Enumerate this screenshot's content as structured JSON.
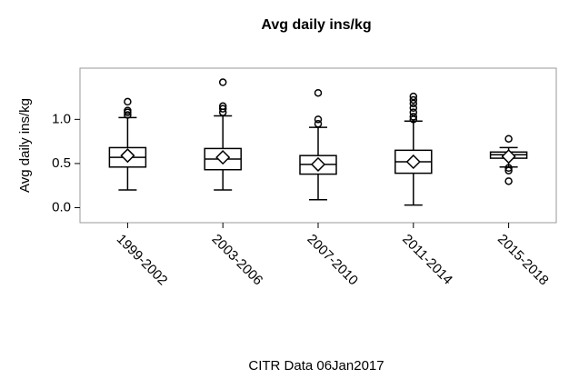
{
  "chart_data": {
    "type": "box",
    "title": "Avg daily ins/kg",
    "ylabel": "Avg daily ins/kg",
    "caption": "CITR  Data 06Jan2017",
    "categories": [
      "1999-2002",
      "2003-2006",
      "2007-2010",
      "2011-2014",
      "2015-2018"
    ],
    "boxes": [
      {
        "low": 0.2,
        "q1": 0.46,
        "median": 0.57,
        "q3": 0.68,
        "high": 1.02,
        "mean": 0.59,
        "outliers": [
          1.05,
          1.08,
          1.1,
          1.2
        ]
      },
      {
        "low": 0.2,
        "q1": 0.43,
        "median": 0.55,
        "q3": 0.67,
        "high": 1.04,
        "mean": 0.57,
        "outliers": [
          1.08,
          1.12,
          1.15,
          1.42
        ]
      },
      {
        "low": 0.09,
        "q1": 0.38,
        "median": 0.49,
        "q3": 0.59,
        "high": 0.91,
        "mean": 0.49,
        "outliers": [
          0.95,
          1.0,
          1.3
        ]
      },
      {
        "low": 0.03,
        "q1": 0.39,
        "median": 0.52,
        "q3": 0.65,
        "high": 0.98,
        "mean": 0.52,
        "outliers": [
          1.0,
          1.03,
          1.08,
          1.13,
          1.18,
          1.22,
          1.26
        ]
      },
      {
        "low": 0.46,
        "q1": 0.56,
        "median": 0.6,
        "q3": 0.63,
        "high": 0.68,
        "mean": 0.58,
        "outliers": [
          0.78,
          0.45,
          0.42,
          0.3
        ]
      }
    ],
    "color": "#000000",
    "ylim": [
      -0.17,
      1.58
    ],
    "yticks": [
      {
        "value": 0,
        "label": "0.0"
      },
      0.5,
      {
        "value": 1,
        "label": "1.0"
      }
    ]
  }
}
